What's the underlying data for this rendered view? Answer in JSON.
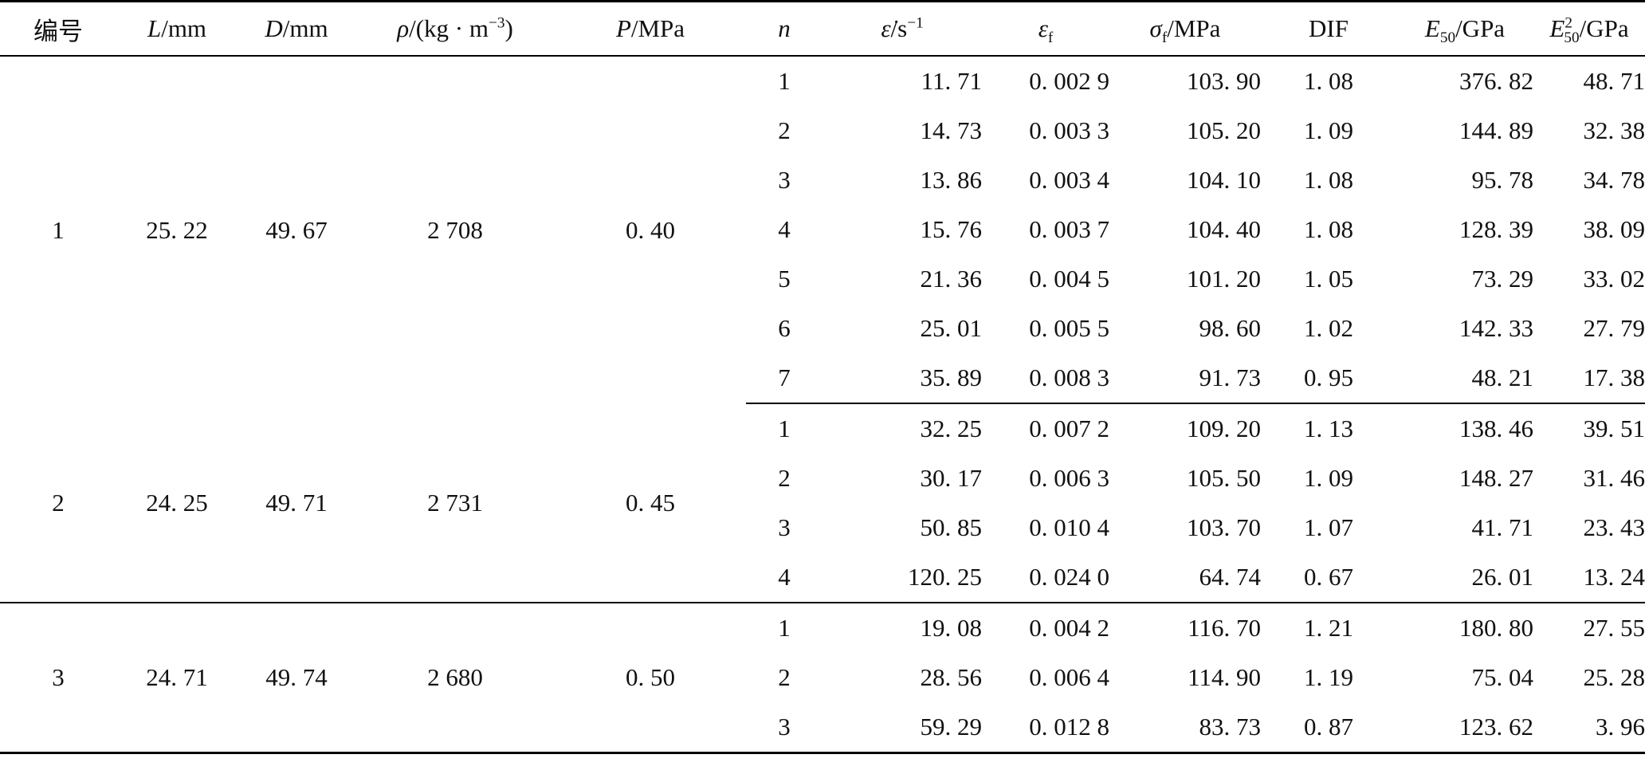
{
  "table": {
    "headers": {
      "id": "编号",
      "length": {
        "sym": "L",
        "unit": "/mm"
      },
      "diameter": {
        "sym": "D",
        "unit": "/mm"
      },
      "density": {
        "sym": "ρ",
        "unit": "/(kg · m",
        "exp": "−3",
        "close": ")"
      },
      "pressure": {
        "sym": "P",
        "unit": "/MPa"
      },
      "n": "n",
      "strain_rate": {
        "sym": "ε̇",
        "unit": "/s",
        "exp": "−1"
      },
      "peak_strain": {
        "sym": "ε",
        "sub": "f"
      },
      "peak_stress": {
        "sym": "σ",
        "sub": "f",
        "unit": "/MPa"
      },
      "dif": "DIF",
      "e50": {
        "sym": "E",
        "sub": "50",
        "unit": "/GPa"
      },
      "e50_2": {
        "sym": "E",
        "sub": "50",
        "sup": "2",
        "unit": "/GPa"
      }
    },
    "groups": [
      {
        "id": "1",
        "L": "25. 22",
        "D": "49. 67",
        "rho": "2 708",
        "P": "0. 40",
        "rows": [
          {
            "n": "1",
            "rate": "11. 71",
            "ef": "0. 002 9",
            "sigma": "103. 90",
            "dif": "1. 08",
            "e50": "376. 82",
            "e50_2": "48. 71"
          },
          {
            "n": "2",
            "rate": "14. 73",
            "ef": "0. 003 3",
            "sigma": "105. 20",
            "dif": "1. 09",
            "e50": "144. 89",
            "e50_2": "32. 38"
          },
          {
            "n": "3",
            "rate": "13. 86",
            "ef": "0. 003 4",
            "sigma": "104. 10",
            "dif": "1. 08",
            "e50": "95. 78",
            "e50_2": "34. 78"
          },
          {
            "n": "4",
            "rate": "15. 76",
            "ef": "0. 003 7",
            "sigma": "104. 40",
            "dif": "1. 08",
            "e50": "128. 39",
            "e50_2": "38. 09"
          },
          {
            "n": "5",
            "rate": "21. 36",
            "ef": "0. 004 5",
            "sigma": "101. 20",
            "dif": "1. 05",
            "e50": "73. 29",
            "e50_2": "33. 02"
          },
          {
            "n": "6",
            "rate": "25. 01",
            "ef": "0. 005 5",
            "sigma": "98. 60",
            "dif": "1. 02",
            "e50": "142. 33",
            "e50_2": "27. 79"
          },
          {
            "n": "7",
            "rate": "35. 89",
            "ef": "0. 008 3",
            "sigma": "91. 73",
            "dif": "0. 95",
            "e50": "48. 21",
            "e50_2": "17. 38"
          }
        ]
      },
      {
        "id": "2",
        "L": "24. 25",
        "D": "49. 71",
        "rho": "2 731",
        "P": "0. 45",
        "rows": [
          {
            "n": "1",
            "rate": "32. 25",
            "ef": "0. 007 2",
            "sigma": "109. 20",
            "dif": "1. 13",
            "e50": "138. 46",
            "e50_2": "39. 51"
          },
          {
            "n": "2",
            "rate": "30. 17",
            "ef": "0. 006 3",
            "sigma": "105. 50",
            "dif": "1. 09",
            "e50": "148. 27",
            "e50_2": "31. 46"
          },
          {
            "n": "3",
            "rate": "50. 85",
            "ef": "0. 010 4",
            "sigma": "103. 70",
            "dif": "1. 07",
            "e50": "41. 71",
            "e50_2": "23. 43"
          },
          {
            "n": "4",
            "rate": "120. 25",
            "ef": "0. 024 0",
            "sigma": "64. 74",
            "dif": "0. 67",
            "e50": "26. 01",
            "e50_2": "13. 24"
          }
        ]
      },
      {
        "id": "3",
        "L": "24. 71",
        "D": "49. 74",
        "rho": "2 680",
        "P": "0. 50",
        "rows": [
          {
            "n": "1",
            "rate": "19. 08",
            "ef": "0. 004 2",
            "sigma": "116. 70",
            "dif": "1. 21",
            "e50": "180. 80",
            "e50_2": "27. 55"
          },
          {
            "n": "2",
            "rate": "28. 56",
            "ef": "0. 006 4",
            "sigma": "114. 90",
            "dif": "1. 19",
            "e50": "75. 04",
            "e50_2": "25. 28"
          },
          {
            "n": "3",
            "rate": "59. 29",
            "ef": "0. 012 8",
            "sigma": "83. 73",
            "dif": "0. 87",
            "e50": "123. 62",
            "e50_2": "3. 96"
          }
        ]
      }
    ]
  }
}
